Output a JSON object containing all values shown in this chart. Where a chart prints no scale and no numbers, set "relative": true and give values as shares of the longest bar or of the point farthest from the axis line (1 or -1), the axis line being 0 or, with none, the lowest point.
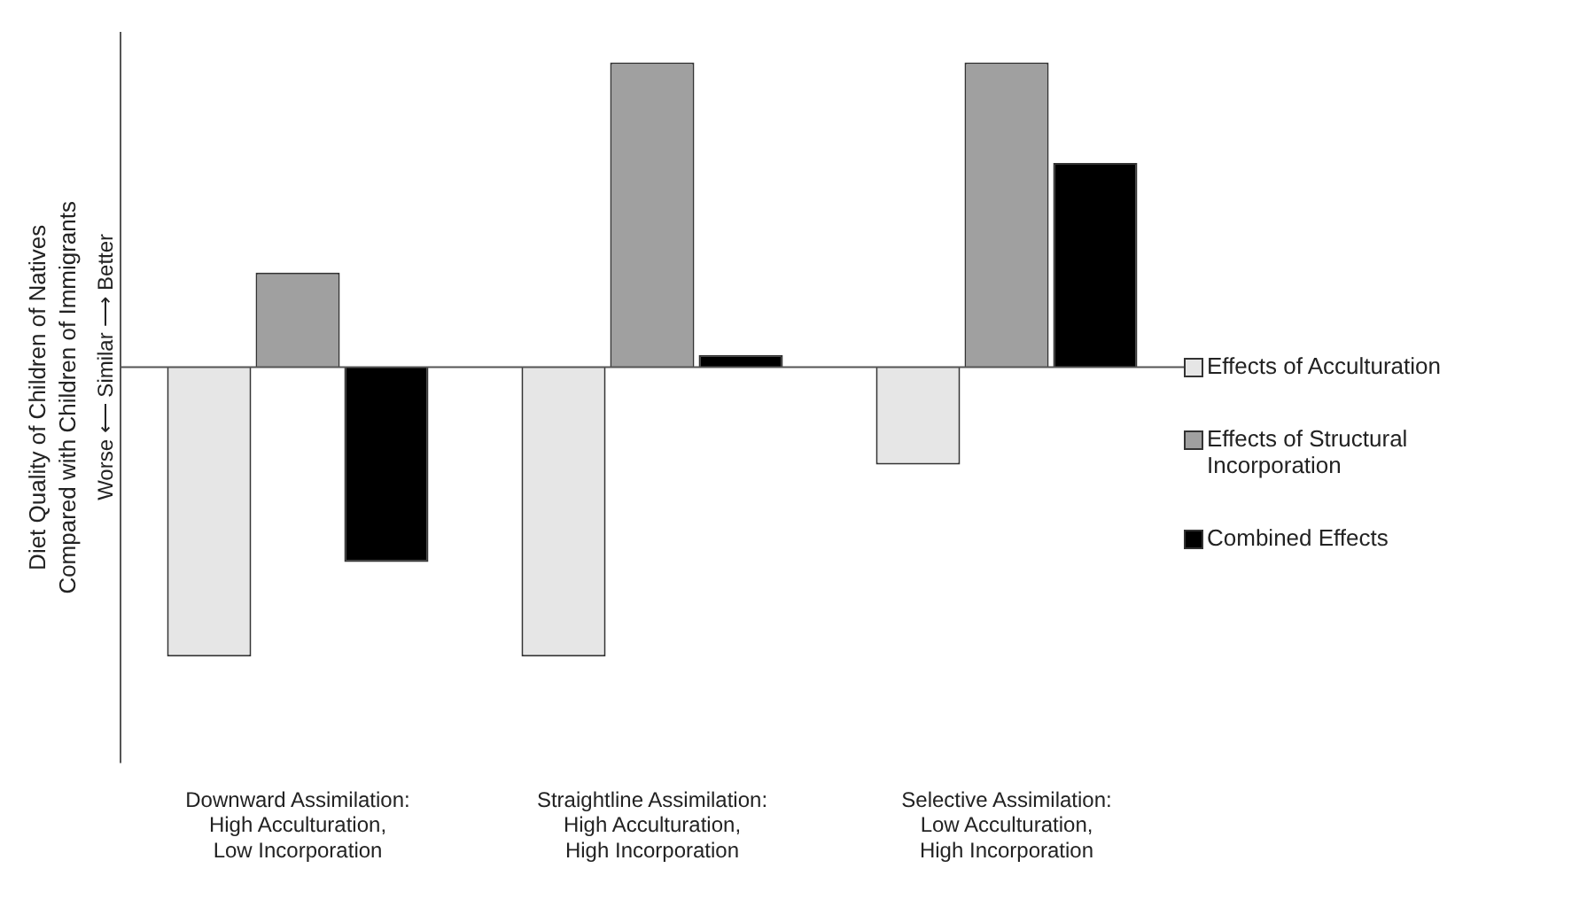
{
  "chart_data": {
    "type": "bar",
    "relative": true,
    "ylabel": "Diet Quality of Children of Natives\nCompared with Children of Immigrants",
    "annotations": [
      "Worse ⟵ Similar ⟶ Better"
    ],
    "categories": [
      "Downward Assimilation:\nHigh Acculturation,\nLow Incorporation",
      "Straightline Assimilation:\nHigh Acculturation,\nHigh Incorporation",
      "Selective Assimilation:\nLow Acculturation,\nHigh Incorporation"
    ],
    "series": [
      {
        "name": "Effects of Acculturation",
        "color": "#e6e6e6",
        "values": [
          -0.95,
          -0.95,
          -0.32
        ]
      },
      {
        "name": "Effects of Structural\nIncorporation",
        "color": "#a0a0a0",
        "values": [
          0.31,
          1,
          1
        ]
      },
      {
        "name": "Combined Effects",
        "color": "#000000",
        "values": [
          -0.64,
          0.04,
          0.67
        ]
      }
    ],
    "legend": "right",
    "grid": false
  }
}
